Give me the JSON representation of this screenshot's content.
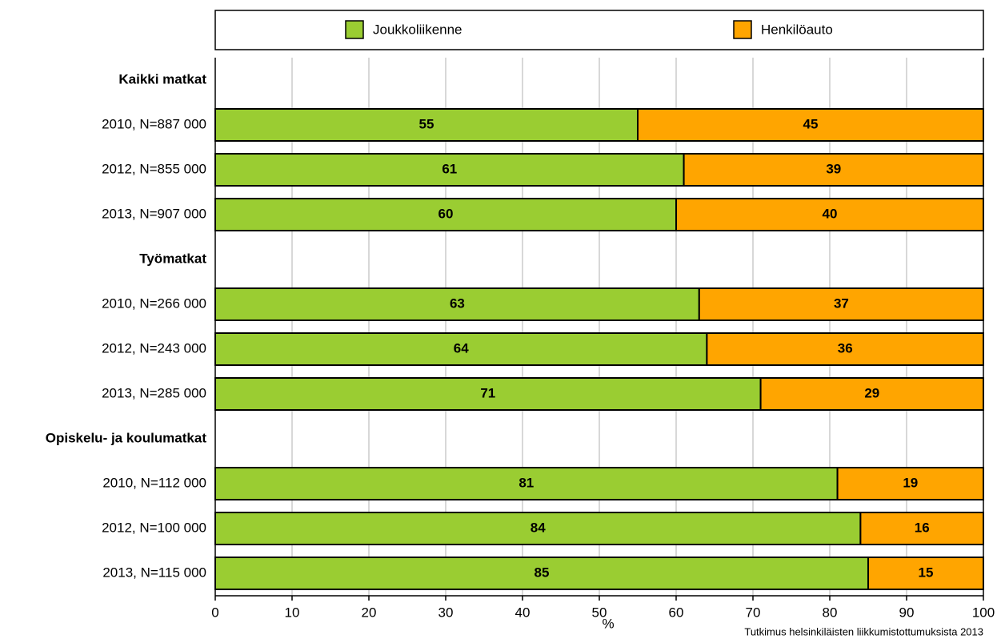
{
  "chart_data": {
    "type": "stacked_barh",
    "categories": [
      "Kaikki matkat",
      "2010, N=887 000",
      "2012, N=855 000",
      "2013, N=907 000",
      "Työmatkat",
      "2010, N=266 000",
      "2012, N=243 000",
      "2013, N=285 000",
      "Opiskelu- ja koulumatkat",
      "2010, N=112 000",
      "2012, N=100 000",
      "2013, N=115 000"
    ],
    "series": [
      {
        "name": "Joukkoliikenne",
        "color": "#9acd32",
        "values": [
          null,
          55,
          61,
          60,
          null,
          63,
          64,
          71,
          null,
          81,
          84,
          85
        ]
      },
      {
        "name": "Henkilöauto",
        "color": "#ffa500",
        "values": [
          null,
          45,
          39,
          40,
          null,
          37,
          36,
          29,
          null,
          19,
          16,
          15
        ]
      }
    ],
    "xlim": [
      0,
      100
    ],
    "xticks": [
      0,
      10,
      20,
      30,
      40,
      50,
      60,
      70,
      80,
      90,
      100
    ],
    "xlabel": "%",
    "annotation": "Tutkimus helsinkiläisten liikkumistottumuksista 2013",
    "grid": true,
    "legend": "top"
  }
}
